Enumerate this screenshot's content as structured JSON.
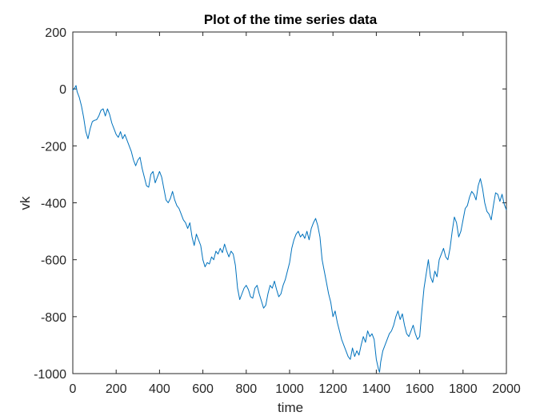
{
  "chart_data": {
    "type": "line",
    "title": "Plot of the time series data",
    "xlabel": "time",
    "ylabel": "vk",
    "xlim": [
      0,
      2000
    ],
    "ylim": [
      -1000,
      200
    ],
    "grid": false,
    "legend": "none",
    "x_ticks": [
      0,
      200,
      400,
      600,
      800,
      1000,
      1200,
      1400,
      1600,
      1800,
      2000
    ],
    "y_ticks": [
      200,
      0,
      -200,
      -400,
      -600,
      -800,
      -1000
    ],
    "series": [
      {
        "color": "#0072BD",
        "points": [
          [
            0,
            -5
          ],
          [
            10,
            5
          ],
          [
            15,
            12
          ],
          [
            20,
            -10
          ],
          [
            30,
            -30
          ],
          [
            40,
            -60
          ],
          [
            50,
            -100
          ],
          [
            60,
            -150
          ],
          [
            70,
            -175
          ],
          [
            80,
            -140
          ],
          [
            90,
            -115
          ],
          [
            100,
            -110
          ],
          [
            110,
            -108
          ],
          [
            120,
            -95
          ],
          [
            130,
            -75
          ],
          [
            140,
            -70
          ],
          [
            150,
            -95
          ],
          [
            160,
            -70
          ],
          [
            170,
            -90
          ],
          [
            180,
            -120
          ],
          [
            190,
            -140
          ],
          [
            200,
            -160
          ],
          [
            210,
            -170
          ],
          [
            220,
            -150
          ],
          [
            230,
            -175
          ],
          [
            240,
            -160
          ],
          [
            250,
            -180
          ],
          [
            260,
            -200
          ],
          [
            270,
            -220
          ],
          [
            280,
            -250
          ],
          [
            290,
            -270
          ],
          [
            300,
            -250
          ],
          [
            310,
            -240
          ],
          [
            320,
            -280
          ],
          [
            330,
            -310
          ],
          [
            340,
            -340
          ],
          [
            350,
            -345
          ],
          [
            360,
            -300
          ],
          [
            370,
            -290
          ],
          [
            380,
            -330
          ],
          [
            390,
            -310
          ],
          [
            400,
            -290
          ],
          [
            410,
            -310
          ],
          [
            420,
            -350
          ],
          [
            430,
            -390
          ],
          [
            440,
            -400
          ],
          [
            450,
            -385
          ],
          [
            460,
            -360
          ],
          [
            470,
            -390
          ],
          [
            480,
            -410
          ],
          [
            490,
            -420
          ],
          [
            500,
            -440
          ],
          [
            510,
            -460
          ],
          [
            520,
            -470
          ],
          [
            530,
            -490
          ],
          [
            540,
            -470
          ],
          [
            550,
            -520
          ],
          [
            560,
            -550
          ],
          [
            570,
            -510
          ],
          [
            580,
            -530
          ],
          [
            590,
            -550
          ],
          [
            600,
            -600
          ],
          [
            610,
            -625
          ],
          [
            620,
            -610
          ],
          [
            630,
            -615
          ],
          [
            640,
            -590
          ],
          [
            650,
            -600
          ],
          [
            660,
            -570
          ],
          [
            670,
            -580
          ],
          [
            680,
            -560
          ],
          [
            690,
            -575
          ],
          [
            700,
            -545
          ],
          [
            710,
            -570
          ],
          [
            720,
            -590
          ],
          [
            730,
            -570
          ],
          [
            740,
            -580
          ],
          [
            750,
            -620
          ],
          [
            760,
            -700
          ],
          [
            770,
            -740
          ],
          [
            780,
            -720
          ],
          [
            790,
            -700
          ],
          [
            800,
            -690
          ],
          [
            810,
            -705
          ],
          [
            820,
            -730
          ],
          [
            830,
            -735
          ],
          [
            840,
            -700
          ],
          [
            850,
            -690
          ],
          [
            860,
            -720
          ],
          [
            870,
            -745
          ],
          [
            880,
            -770
          ],
          [
            890,
            -760
          ],
          [
            900,
            -720
          ],
          [
            910,
            -690
          ],
          [
            920,
            -700
          ],
          [
            930,
            -675
          ],
          [
            940,
            -705
          ],
          [
            950,
            -730
          ],
          [
            960,
            -720
          ],
          [
            970,
            -690
          ],
          [
            980,
            -670
          ],
          [
            990,
            -640
          ],
          [
            1000,
            -610
          ],
          [
            1010,
            -560
          ],
          [
            1020,
            -530
          ],
          [
            1030,
            -510
          ],
          [
            1040,
            -500
          ],
          [
            1050,
            -520
          ],
          [
            1060,
            -510
          ],
          [
            1070,
            -525
          ],
          [
            1080,
            -500
          ],
          [
            1090,
            -530
          ],
          [
            1100,
            -490
          ],
          [
            1110,
            -470
          ],
          [
            1120,
            -455
          ],
          [
            1130,
            -480
          ],
          [
            1140,
            -520
          ],
          [
            1150,
            -600
          ],
          [
            1160,
            -640
          ],
          [
            1170,
            -680
          ],
          [
            1180,
            -720
          ],
          [
            1190,
            -750
          ],
          [
            1200,
            -800
          ],
          [
            1210,
            -780
          ],
          [
            1220,
            -820
          ],
          [
            1230,
            -850
          ],
          [
            1240,
            -880
          ],
          [
            1250,
            -900
          ],
          [
            1260,
            -920
          ],
          [
            1270,
            -940
          ],
          [
            1280,
            -950
          ],
          [
            1290,
            -910
          ],
          [
            1300,
            -940
          ],
          [
            1310,
            -920
          ],
          [
            1320,
            -935
          ],
          [
            1330,
            -900
          ],
          [
            1340,
            -870
          ],
          [
            1350,
            -890
          ],
          [
            1360,
            -850
          ],
          [
            1370,
            -870
          ],
          [
            1380,
            -860
          ],
          [
            1390,
            -880
          ],
          [
            1400,
            -950
          ],
          [
            1410,
            -985
          ],
          [
            1415,
            -995
          ],
          [
            1420,
            -960
          ],
          [
            1430,
            -920
          ],
          [
            1440,
            -900
          ],
          [
            1450,
            -880
          ],
          [
            1460,
            -860
          ],
          [
            1470,
            -850
          ],
          [
            1480,
            -830
          ],
          [
            1490,
            -800
          ],
          [
            1500,
            -780
          ],
          [
            1510,
            -810
          ],
          [
            1520,
            -790
          ],
          [
            1530,
            -830
          ],
          [
            1540,
            -860
          ],
          [
            1550,
            -870
          ],
          [
            1560,
            -850
          ],
          [
            1570,
            -830
          ],
          [
            1580,
            -860
          ],
          [
            1590,
            -880
          ],
          [
            1600,
            -870
          ],
          [
            1610,
            -780
          ],
          [
            1620,
            -700
          ],
          [
            1630,
            -650
          ],
          [
            1640,
            -600
          ],
          [
            1650,
            -660
          ],
          [
            1660,
            -680
          ],
          [
            1670,
            -640
          ],
          [
            1680,
            -660
          ],
          [
            1690,
            -600
          ],
          [
            1700,
            -580
          ],
          [
            1710,
            -560
          ],
          [
            1720,
            -590
          ],
          [
            1730,
            -600
          ],
          [
            1740,
            -560
          ],
          [
            1750,
            -500
          ],
          [
            1760,
            -450
          ],
          [
            1770,
            -470
          ],
          [
            1780,
            -520
          ],
          [
            1790,
            -500
          ],
          [
            1800,
            -460
          ],
          [
            1810,
            -420
          ],
          [
            1820,
            -410
          ],
          [
            1830,
            -380
          ],
          [
            1840,
            -360
          ],
          [
            1850,
            -370
          ],
          [
            1860,
            -390
          ],
          [
            1870,
            -340
          ],
          [
            1880,
            -315
          ],
          [
            1890,
            -350
          ],
          [
            1900,
            -400
          ],
          [
            1910,
            -430
          ],
          [
            1920,
            -440
          ],
          [
            1930,
            -460
          ],
          [
            1940,
            -410
          ],
          [
            1950,
            -365
          ],
          [
            1960,
            -370
          ],
          [
            1970,
            -395
          ],
          [
            1980,
            -370
          ],
          [
            1990,
            -405
          ],
          [
            2000,
            -425
          ]
        ]
      }
    ]
  }
}
